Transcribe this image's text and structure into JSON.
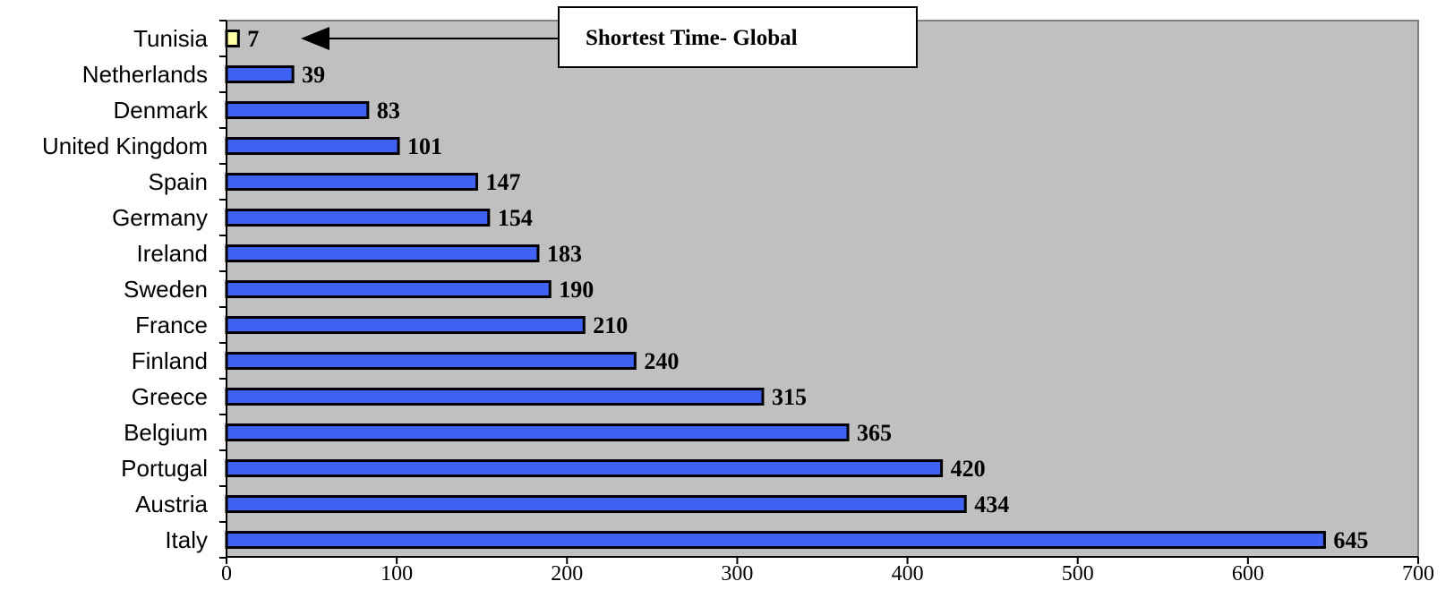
{
  "chart_data": {
    "type": "bar",
    "orientation": "horizontal",
    "categories": [
      "Tunisia",
      "Netherlands",
      "Denmark",
      "United Kingdom",
      "Spain",
      "Germany",
      "Ireland",
      "Sweden",
      "France",
      "Finland",
      "Greece",
      "Belgium",
      "Portugal",
      "Austria",
      "Italy"
    ],
    "values": [
      7,
      39,
      83,
      101,
      147,
      154,
      183,
      190,
      210,
      240,
      315,
      365,
      420,
      434,
      645
    ],
    "data_labels": [
      "7",
      "39",
      "83",
      "101",
      "147",
      "154",
      "183",
      "190",
      "210",
      "240",
      "315",
      "365",
      "420",
      "434",
      "645"
    ],
    "xlim": [
      0,
      700
    ],
    "x_ticks": [
      0,
      100,
      200,
      300,
      400,
      500,
      600,
      700
    ],
    "x_tick_labels": [
      "0",
      "100",
      "200",
      "300",
      "400",
      "500",
      "600",
      "700"
    ],
    "title": "",
    "xlabel": "",
    "ylabel": "",
    "grid": false,
    "plot_background": "#c0c0c0",
    "bar_color": "#3f62f2",
    "highlight_color": "#ffffa8",
    "highlight_category": "Tunisia",
    "annotation": {
      "text": "Shortest Time- Global",
      "target_category": "Tunisia"
    }
  }
}
